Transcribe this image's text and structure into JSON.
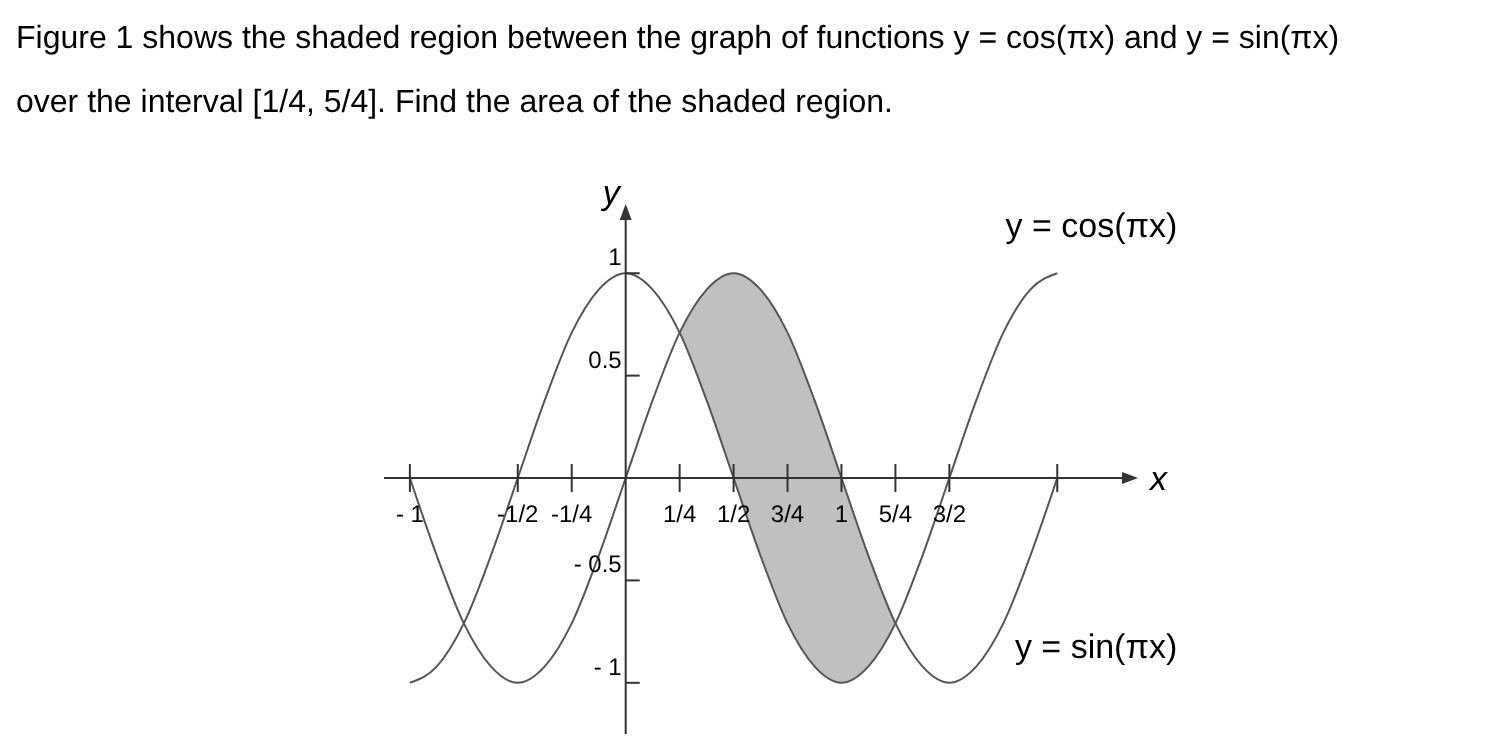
{
  "chart_data": {
    "type": "line",
    "title": "Figure 1 shows the shaded region between the graph of functions y = cos(πx) and y = sin(πx)",
    "subtitle": "over the interval [1/4, 5/4]. Find the area of the shaded region.",
    "xlabel": "x",
    "ylabel": "y",
    "xlim": [
      -1.12,
      2.3
    ],
    "ylim": [
      -1.25,
      1.26
    ],
    "xticks": [
      {
        "value": -1,
        "label": "- 1"
      },
      {
        "value": -0.5,
        "label": "-1/2"
      },
      {
        "value": -0.25,
        "label": "-1/4"
      },
      {
        "value": 0.25,
        "label": "1/4"
      },
      {
        "value": 0.5,
        "label": "1/2"
      },
      {
        "value": 0.75,
        "label": "3/4"
      },
      {
        "value": 1,
        "label": "1"
      },
      {
        "value": 1.25,
        "label": "5/4"
      },
      {
        "value": 1.5,
        "label": "3/2"
      },
      {
        "value": 2,
        "label": null
      }
    ],
    "yticks": [
      1,
      0.5,
      {
        "value": -0.5,
        "label": "- 0.5"
      },
      {
        "value": -1,
        "label": "- 1"
      }
    ],
    "grid": false,
    "legend": false,
    "marker": "none",
    "line_style": "solid",
    "series": [
      {
        "name": "y = cos(πx)",
        "color": "#555555",
        "x": [
          -1,
          -0.875,
          -0.75,
          -0.625,
          -0.5,
          -0.375,
          -0.25,
          -0.125,
          0,
          0.125,
          0.25,
          0.375,
          0.5,
          0.625,
          0.75,
          0.875,
          1,
          1.125,
          1.25,
          1.375,
          1.5,
          1.625,
          1.75,
          1.875,
          2
        ],
        "values": [
          -1,
          -0.92,
          -0.71,
          -0.38,
          0,
          0.38,
          0.71,
          0.92,
          1,
          0.92,
          0.71,
          0.38,
          0,
          -0.38,
          -0.71,
          -0.92,
          -1,
          -0.92,
          -0.71,
          -0.38,
          0,
          0.38,
          0.71,
          0.92,
          1
        ]
      },
      {
        "name": "y = sin(πx)",
        "color": "#555555",
        "x": [
          -1,
          -0.875,
          -0.75,
          -0.625,
          -0.5,
          -0.375,
          -0.25,
          -0.125,
          0,
          0.125,
          0.25,
          0.375,
          0.5,
          0.625,
          0.75,
          0.875,
          1,
          1.125,
          1.25,
          1.375,
          1.5,
          1.625,
          1.75,
          1.875,
          2
        ],
        "values": [
          0,
          -0.38,
          -0.71,
          -0.92,
          -1,
          -0.92,
          -0.71,
          -0.38,
          0,
          0.38,
          0.71,
          0.92,
          1,
          0.92,
          0.71,
          0.38,
          0,
          -0.38,
          -0.71,
          -0.92,
          -1,
          -0.92,
          -0.71,
          -0.38,
          0
        ],
        "lower": [
          null,
          null,
          null,
          null,
          null,
          null,
          null,
          null,
          null,
          null,
          0.71,
          0.38,
          0,
          -0.38,
          -0.71,
          -0.92,
          -1,
          -0.92,
          -0.71,
          null,
          null,
          null,
          null,
          null,
          null
        ],
        "upper": [
          null,
          null,
          null,
          null,
          null,
          null,
          null,
          null,
          null,
          null,
          0.71,
          0.92,
          1,
          0.92,
          0.71,
          0.38,
          0,
          -0.38,
          -0.71,
          null,
          null,
          null,
          null,
          null,
          null
        ]
      }
    ]
  }
}
